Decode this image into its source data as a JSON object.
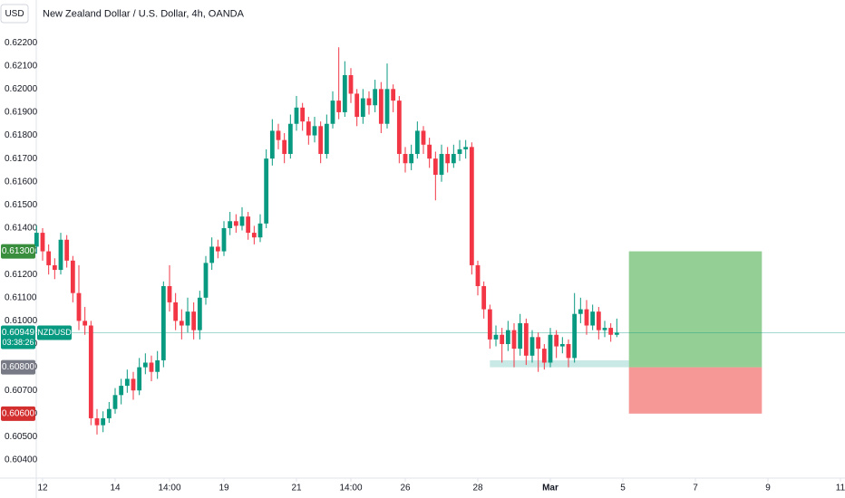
{
  "chart_data": {
    "type": "candlestick",
    "currency": "USD",
    "title": "New Zealand Dollar / U.S. Dollar, 4h, OANDA",
    "up_color": "#089981",
    "down_color": "#f23645",
    "candles": [
      [
        0.6132,
        0.6141,
        0.6129,
        0.6138
      ],
      [
        0.6138,
        0.614,
        0.6126,
        0.613
      ],
      [
        0.613,
        0.6133,
        0.612,
        0.6124
      ],
      [
        0.6124,
        0.6127,
        0.6118,
        0.6122
      ],
      [
        0.6122,
        0.6138,
        0.612,
        0.6135
      ],
      [
        0.6135,
        0.6137,
        0.6123,
        0.6126
      ],
      [
        0.6126,
        0.6128,
        0.6108,
        0.6112
      ],
      [
        0.6112,
        0.6124,
        0.6096,
        0.61
      ],
      [
        0.61,
        0.6106,
        0.6094,
        0.6098
      ],
      [
        0.6098,
        0.61,
        0.6055,
        0.6058
      ],
      [
        0.6058,
        0.6062,
        0.6051,
        0.6055
      ],
      [
        0.6055,
        0.6061,
        0.6052,
        0.6058
      ],
      [
        0.6058,
        0.6065,
        0.6056,
        0.6062
      ],
      [
        0.6062,
        0.6071,
        0.606,
        0.6068
      ],
      [
        0.6068,
        0.6075,
        0.6064,
        0.6072
      ],
      [
        0.6072,
        0.6079,
        0.6069,
        0.6075
      ],
      [
        0.6075,
        0.6078,
        0.6066,
        0.607
      ],
      [
        0.607,
        0.6084,
        0.6068,
        0.608
      ],
      [
        0.608,
        0.6086,
        0.6077,
        0.6082
      ],
      [
        0.6082,
        0.6085,
        0.6074,
        0.6078
      ],
      [
        0.6078,
        0.6087,
        0.6075,
        0.6083
      ],
      [
        0.6083,
        0.6117,
        0.608,
        0.6115
      ],
      [
        0.6115,
        0.6124,
        0.6104,
        0.6108
      ],
      [
        0.6108,
        0.6112,
        0.6096,
        0.61
      ],
      [
        0.61,
        0.6105,
        0.6092,
        0.6098
      ],
      [
        0.6098,
        0.611,
        0.6095,
        0.6104
      ],
      [
        0.6104,
        0.6108,
        0.6092,
        0.6096
      ],
      [
        0.6096,
        0.6113,
        0.6092,
        0.611
      ],
      [
        0.611,
        0.6128,
        0.6107,
        0.6125
      ],
      [
        0.6125,
        0.6136,
        0.6122,
        0.6132
      ],
      [
        0.6132,
        0.6135,
        0.6127,
        0.613
      ],
      [
        0.613,
        0.6143,
        0.6128,
        0.614
      ],
      [
        0.614,
        0.6147,
        0.6137,
        0.6143
      ],
      [
        0.6143,
        0.6146,
        0.6138,
        0.6141
      ],
      [
        0.6141,
        0.6149,
        0.6139,
        0.6145
      ],
      [
        0.6145,
        0.6147,
        0.6135,
        0.6138
      ],
      [
        0.6138,
        0.6141,
        0.6133,
        0.6136
      ],
      [
        0.6136,
        0.6146,
        0.6134,
        0.6142
      ],
      [
        0.6142,
        0.6174,
        0.614,
        0.617
      ],
      [
        0.617,
        0.6187,
        0.6167,
        0.6182
      ],
      [
        0.6182,
        0.6185,
        0.6174,
        0.6178
      ],
      [
        0.6178,
        0.6181,
        0.6168,
        0.6172
      ],
      [
        0.6172,
        0.6189,
        0.617,
        0.6185
      ],
      [
        0.6185,
        0.6197,
        0.6182,
        0.6192
      ],
      [
        0.6192,
        0.6194,
        0.6182,
        0.6186
      ],
      [
        0.6186,
        0.6188,
        0.6176,
        0.618
      ],
      [
        0.618,
        0.6188,
        0.6177,
        0.6184
      ],
      [
        0.6184,
        0.6186,
        0.6168,
        0.6172
      ],
      [
        0.6172,
        0.6189,
        0.617,
        0.6185
      ],
      [
        0.6185,
        0.6199,
        0.6183,
        0.6195
      ],
      [
        0.6195,
        0.6218,
        0.6187,
        0.619
      ],
      [
        0.619,
        0.6212,
        0.6188,
        0.6206
      ],
      [
        0.6206,
        0.6209,
        0.6194,
        0.6198
      ],
      [
        0.6198,
        0.62,
        0.6184,
        0.6188
      ],
      [
        0.6188,
        0.62,
        0.6185,
        0.6196
      ],
      [
        0.6196,
        0.6199,
        0.6189,
        0.6193
      ],
      [
        0.6193,
        0.6204,
        0.619,
        0.62
      ],
      [
        0.62,
        0.6203,
        0.6181,
        0.6185
      ],
      [
        0.6185,
        0.6211,
        0.6183,
        0.62
      ],
      [
        0.62,
        0.6202,
        0.619,
        0.6195
      ],
      [
        0.6195,
        0.6197,
        0.6168,
        0.6172
      ],
      [
        0.6172,
        0.6175,
        0.6164,
        0.6168
      ],
      [
        0.6168,
        0.6176,
        0.6165,
        0.6172
      ],
      [
        0.6172,
        0.6186,
        0.617,
        0.6182
      ],
      [
        0.6182,
        0.6184,
        0.6172,
        0.6176
      ],
      [
        0.6176,
        0.6179,
        0.6166,
        0.617
      ],
      [
        0.617,
        0.6173,
        0.6152,
        0.6163
      ],
      [
        0.6163,
        0.6176,
        0.616,
        0.6172
      ],
      [
        0.6172,
        0.6175,
        0.6164,
        0.6168
      ],
      [
        0.6168,
        0.6176,
        0.6166,
        0.6172
      ],
      [
        0.6172,
        0.6178,
        0.6169,
        0.6174
      ],
      [
        0.6174,
        0.6178,
        0.617,
        0.6175
      ],
      [
        0.6175,
        0.6177,
        0.612,
        0.6124
      ],
      [
        0.6124,
        0.6126,
        0.6111,
        0.6115
      ],
      [
        0.6115,
        0.6117,
        0.6101,
        0.6105
      ],
      [
        0.6105,
        0.6107,
        0.6088,
        0.6092
      ],
      [
        0.6092,
        0.6098,
        0.6089,
        0.6094
      ],
      [
        0.6094,
        0.6097,
        0.6082,
        0.609
      ],
      [
        0.609,
        0.61,
        0.6087,
        0.6096
      ],
      [
        0.6096,
        0.6099,
        0.608,
        0.6088
      ],
      [
        0.6088,
        0.6103,
        0.6085,
        0.6099
      ],
      [
        0.6099,
        0.6101,
        0.6081,
        0.6085
      ],
      [
        0.6085,
        0.6096,
        0.6082,
        0.6093
      ],
      [
        0.6093,
        0.6095,
        0.6078,
        0.6088
      ],
      [
        0.6088,
        0.609,
        0.6079,
        0.6082
      ],
      [
        0.6082,
        0.6097,
        0.608,
        0.6094
      ],
      [
        0.6094,
        0.6096,
        0.6084,
        0.6089
      ],
      [
        0.6089,
        0.6093,
        0.6086,
        0.609
      ],
      [
        0.609,
        0.6092,
        0.608,
        0.6084
      ],
      [
        0.6084,
        0.6112,
        0.6082,
        0.6103
      ],
      [
        0.6103,
        0.611,
        0.6099,
        0.6105
      ],
      [
        0.6105,
        0.6109,
        0.6094,
        0.6098
      ],
      [
        0.6098,
        0.6107,
        0.6096,
        0.6104
      ],
      [
        0.6104,
        0.6106,
        0.6092,
        0.6096
      ],
      [
        0.6096,
        0.61,
        0.6093,
        0.6097
      ],
      [
        0.6097,
        0.6099,
        0.6091,
        0.6094
      ],
      [
        0.6094,
        0.6101,
        0.6093,
        0.60949
      ]
    ],
    "xlim": [
      -0.05,
      133.75
    ],
    "xticks": [
      {
        "value": 1,
        "label": "12"
      },
      {
        "value": 13,
        "label": "14"
      },
      {
        "value": 22,
        "label": "14:00"
      },
      {
        "value": 31,
        "label": "19"
      },
      {
        "value": 43,
        "label": "21"
      },
      {
        "value": 52,
        "label": "14:00"
      },
      {
        "value": 61,
        "label": "26"
      },
      {
        "value": 73,
        "label": "28"
      },
      {
        "value": 85,
        "label": "Mar"
      },
      {
        "value": 97,
        "label": "5"
      },
      {
        "value": 109,
        "label": "7"
      },
      {
        "value": 121,
        "label": "9"
      },
      {
        "value": 133,
        "label": "11"
      }
    ],
    "ylim": [
      0.60322,
      0.62384
    ],
    "yticks": [
      {
        "value": 0.604,
        "label": "0.60400"
      },
      {
        "value": 0.605,
        "label": "0.60500"
      },
      {
        "value": 0.606,
        "label": "0.60600"
      },
      {
        "value": 0.607,
        "label": "0.60700"
      },
      {
        "value": 0.608,
        "label": "0.60800"
      },
      {
        "value": 0.609,
        "label": "0.60900"
      },
      {
        "value": 0.61,
        "label": "0.61000"
      },
      {
        "value": 0.611,
        "label": "0.61100"
      },
      {
        "value": 0.612,
        "label": "0.61200"
      },
      {
        "value": 0.613,
        "label": "0.61300"
      },
      {
        "value": 0.614,
        "label": "0.61400"
      },
      {
        "value": 0.615,
        "label": "0.61500"
      },
      {
        "value": 0.616,
        "label": "0.61600"
      },
      {
        "value": 0.617,
        "label": "0.61700"
      },
      {
        "value": 0.618,
        "label": "0.61800"
      },
      {
        "value": 0.619,
        "label": "0.61900"
      },
      {
        "value": 0.62,
        "label": "0.62000"
      },
      {
        "value": 0.621,
        "label": "0.62100"
      },
      {
        "value": 0.622,
        "label": "0.62200"
      }
    ],
    "zone": {
      "low": 0.608,
      "high": 0.6083,
      "start": 75,
      "end": 98,
      "color": "#b2dfdb"
    },
    "position": {
      "target": {
        "value": 0.613,
        "label": "0.61300"
      },
      "entry": {
        "value": 0.608,
        "label": "0.60800"
      },
      "stop": {
        "value": 0.606,
        "label": "0.60600"
      },
      "start": 98,
      "end": 120,
      "profit_color": "#4caf50",
      "loss_color": "#ef5350",
      "target_color": "#388e3c",
      "entry_color": "#787b86",
      "stop_color": "#d32f2f"
    },
    "last": {
      "price": 0.60949,
      "symbol": "NZDUSD",
      "countdown": "03:38:26",
      "color": "#089981"
    }
  }
}
